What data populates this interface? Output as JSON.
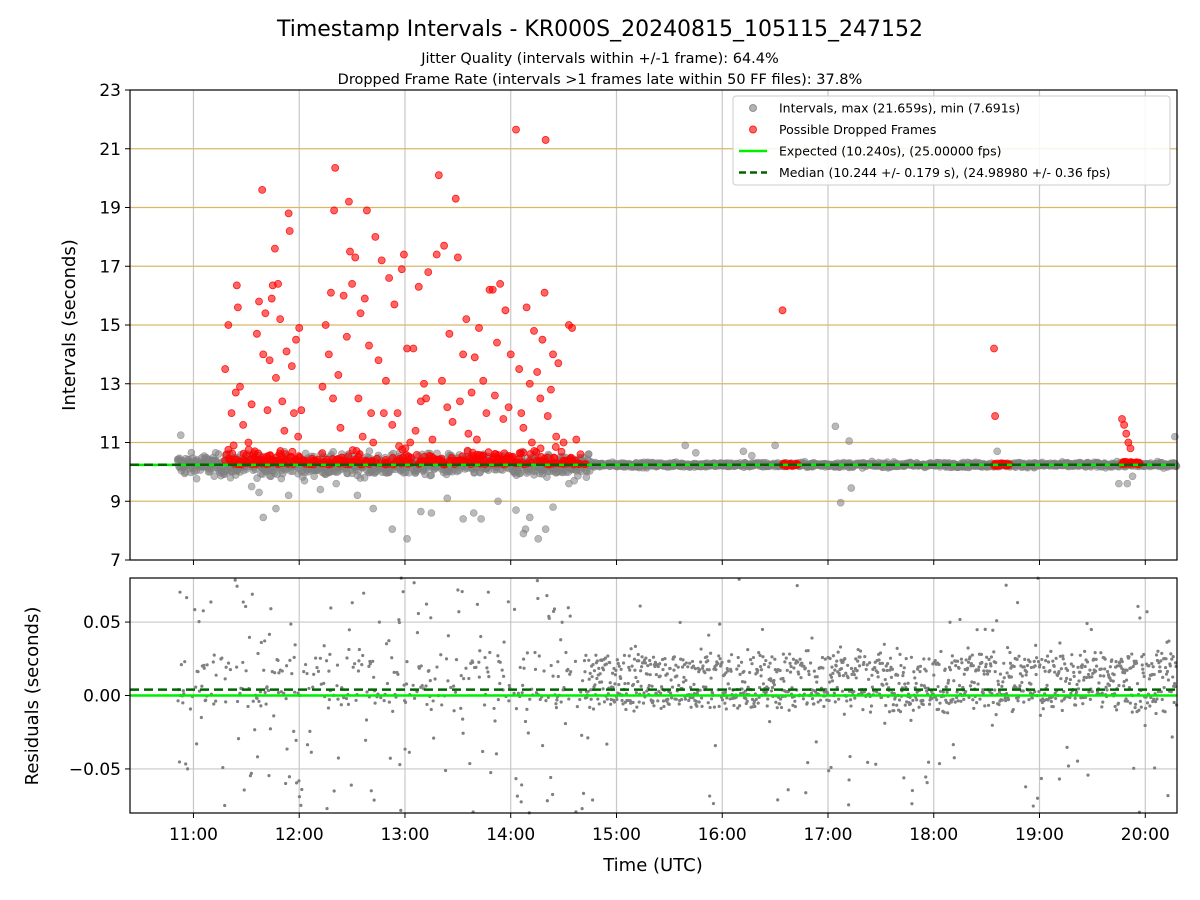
{
  "figure": {
    "title": "Timestamp Intervals - KR000S_20240815_105115_247152",
    "subtitle1": "Jitter Quality (intervals within +/-1 frame): 64.4%",
    "subtitle2": "Dropped Frame Rate (intervals >1 frames late within 50 FF files): 37.8%"
  },
  "chart_data": [
    {
      "type": "scatter",
      "ylabel": "Intervals (seconds)",
      "ylim": [
        7,
        23
      ],
      "yticks": [
        7,
        9,
        11,
        13,
        15,
        17,
        19,
        21,
        23
      ],
      "ytick_labels": [
        "7",
        "9",
        "11",
        "13",
        "15",
        "17",
        "19",
        "21",
        "23"
      ],
      "xlim_hours": [
        10.4,
        20.3
      ],
      "grid": true,
      "dropped_frame_gridlines": [
        9,
        11,
        13,
        15,
        17,
        19,
        21
      ],
      "legend_position": "top-right",
      "legend": [
        {
          "label": "Intervals, max (21.659s), min (7.691s)",
          "kind": "marker",
          "color": "#808080"
        },
        {
          "label": "Possible Dropped Frames",
          "kind": "marker",
          "color": "#ff0000"
        },
        {
          "label": "Expected (10.240s), (25.00000 fps)",
          "kind": "line",
          "color": "#00ee00"
        },
        {
          "label": "Median (10.244 +/- 0.179 s), (24.98980 +/- 0.36 fps)",
          "kind": "dashed",
          "color": "#006400"
        }
      ],
      "expected_interval": 10.24,
      "median_interval": 10.244,
      "max_interval": 21.659,
      "min_interval": 7.691,
      "series_dropped": {
        "color": "#ff0000",
        "points": [
          [
            11.3,
            13.5
          ],
          [
            11.33,
            15.0
          ],
          [
            11.36,
            12.0
          ],
          [
            11.38,
            10.9
          ],
          [
            11.4,
            12.7
          ],
          [
            11.41,
            16.35
          ],
          [
            11.42,
            15.6
          ],
          [
            11.44,
            12.9
          ],
          [
            11.47,
            11.6
          ],
          [
            11.52,
            11.0
          ],
          [
            11.55,
            12.3
          ],
          [
            11.58,
            10.7
          ],
          [
            11.6,
            14.7
          ],
          [
            11.62,
            15.8
          ],
          [
            11.65,
            19.6
          ],
          [
            11.66,
            14.0
          ],
          [
            11.68,
            15.4
          ],
          [
            11.7,
            12.1
          ],
          [
            11.72,
            13.8
          ],
          [
            11.74,
            15.9
          ],
          [
            11.75,
            16.35
          ],
          [
            11.77,
            17.6
          ],
          [
            11.78,
            13.2
          ],
          [
            11.8,
            16.4
          ],
          [
            11.82,
            15.2
          ],
          [
            11.84,
            12.4
          ],
          [
            11.86,
            11.4
          ],
          [
            11.88,
            14.1
          ],
          [
            11.9,
            18.8
          ],
          [
            11.91,
            18.2
          ],
          [
            11.93,
            13.6
          ],
          [
            11.95,
            12.0
          ],
          [
            11.97,
            14.5
          ],
          [
            11.99,
            11.2
          ],
          [
            12.0,
            14.9
          ],
          [
            12.02,
            12.1
          ],
          [
            12.22,
            12.9
          ],
          [
            12.25,
            15.0
          ],
          [
            12.28,
            14.0
          ],
          [
            12.3,
            16.1
          ],
          [
            12.32,
            12.5
          ],
          [
            12.33,
            18.9
          ],
          [
            12.34,
            20.35
          ],
          [
            12.37,
            13.3
          ],
          [
            12.39,
            11.5
          ],
          [
            12.42,
            16.0
          ],
          [
            12.45,
            14.6
          ],
          [
            12.47,
            19.2
          ],
          [
            12.48,
            17.5
          ],
          [
            12.5,
            16.4
          ],
          [
            12.53,
            17.3
          ],
          [
            12.56,
            12.5
          ],
          [
            12.58,
            15.4
          ],
          [
            12.6,
            11.2
          ],
          [
            12.62,
            15.9
          ],
          [
            12.64,
            18.9
          ],
          [
            12.66,
            14.3
          ],
          [
            12.68,
            12.0
          ],
          [
            12.7,
            11.0
          ],
          [
            12.72,
            18.0
          ],
          [
            12.75,
            13.8
          ],
          [
            12.78,
            17.2
          ],
          [
            12.8,
            12.0
          ],
          [
            12.82,
            13.1
          ],
          [
            12.85,
            16.6
          ],
          [
            12.88,
            11.6
          ],
          [
            12.9,
            15.7
          ],
          [
            12.93,
            12.0
          ],
          [
            12.97,
            16.9
          ],
          [
            12.99,
            17.4
          ],
          [
            13.02,
            14.2
          ],
          [
            13.05,
            11.0
          ],
          [
            13.08,
            14.2
          ],
          [
            13.1,
            11.4
          ],
          [
            13.13,
            16.3
          ],
          [
            13.15,
            12.4
          ],
          [
            13.18,
            13.0
          ],
          [
            13.2,
            12.5
          ],
          [
            13.22,
            16.8
          ],
          [
            13.26,
            11.1
          ],
          [
            13.3,
            17.4
          ],
          [
            13.32,
            20.1
          ],
          [
            13.35,
            13.1
          ],
          [
            13.37,
            17.7
          ],
          [
            13.4,
            12.2
          ],
          [
            13.42,
            14.7
          ],
          [
            13.45,
            11.7
          ],
          [
            13.48,
            19.3
          ],
          [
            13.5,
            17.3
          ],
          [
            13.52,
            12.4
          ],
          [
            13.55,
            14.0
          ],
          [
            13.58,
            15.2
          ],
          [
            13.6,
            11.3
          ],
          [
            13.63,
            12.7
          ],
          [
            13.66,
            13.9
          ],
          [
            13.68,
            11.1
          ],
          [
            13.7,
            14.9
          ],
          [
            13.74,
            13.1
          ],
          [
            13.77,
            12.0
          ],
          [
            13.8,
            16.2
          ],
          [
            13.83,
            16.2
          ],
          [
            13.85,
            12.6
          ],
          [
            13.87,
            14.4
          ],
          [
            13.9,
            16.4
          ],
          [
            13.93,
            11.8
          ],
          [
            13.95,
            15.5
          ],
          [
            13.98,
            12.2
          ],
          [
            14.0,
            14.0
          ],
          [
            14.05,
            21.65
          ],
          [
            14.08,
            13.5
          ],
          [
            14.1,
            12.0
          ],
          [
            14.12,
            11.5
          ],
          [
            14.15,
            15.6
          ],
          [
            14.18,
            13.0
          ],
          [
            14.2,
            11.0
          ],
          [
            14.22,
            14.8
          ],
          [
            14.25,
            13.4
          ],
          [
            14.28,
            12.5
          ],
          [
            14.3,
            14.5
          ],
          [
            14.32,
            16.1
          ],
          [
            14.33,
            21.3
          ],
          [
            14.35,
            11.9
          ],
          [
            14.38,
            12.8
          ],
          [
            14.4,
            14.0
          ],
          [
            14.43,
            11.2
          ],
          [
            14.45,
            13.7
          ],
          [
            14.5,
            11.0
          ],
          [
            14.55,
            15.0
          ],
          [
            14.58,
            14.9
          ],
          [
            14.62,
            11.1
          ],
          [
            14.66,
            10.6
          ],
          [
            16.57,
            15.5
          ],
          [
            18.57,
            14.2
          ],
          [
            18.58,
            11.9
          ],
          [
            19.78,
            11.8
          ],
          [
            19.8,
            11.6
          ],
          [
            19.82,
            11.3
          ],
          [
            19.84,
            11.0
          ],
          [
            19.86,
            10.8
          ]
        ],
        "baseline": {
          "x_start": 11.3,
          "x_end": 14.72,
          "y": 10.3,
          "jitter": 0.25
        },
        "baseline_clusters": [
          {
            "x_start": 16.57,
            "x_end": 16.72,
            "y": 10.25
          },
          {
            "x_start": 18.57,
            "x_end": 18.72,
            "y": 10.25
          },
          {
            "x_start": 19.78,
            "x_end": 19.95,
            "y": 10.3
          }
        ]
      },
      "series_intervals": {
        "color": "#808080",
        "x_start": 10.85,
        "x_end": 20.3,
        "center": 10.24,
        "noisy_range": [
          10.85,
          14.75
        ],
        "outliers": [
          [
            10.88,
            11.25
          ],
          [
            11.35,
            9.8
          ],
          [
            11.55,
            9.5
          ],
          [
            11.62,
            9.3
          ],
          [
            11.66,
            8.45
          ],
          [
            11.78,
            8.75
          ],
          [
            11.9,
            9.2
          ],
          [
            12.05,
            9.7
          ],
          [
            12.2,
            9.4
          ],
          [
            12.35,
            9.6
          ],
          [
            12.55,
            9.2
          ],
          [
            12.7,
            8.75
          ],
          [
            12.88,
            8.05
          ],
          [
            13.02,
            7.72
          ],
          [
            13.15,
            8.65
          ],
          [
            13.25,
            8.6
          ],
          [
            13.4,
            9.1
          ],
          [
            13.55,
            8.4
          ],
          [
            13.65,
            8.6
          ],
          [
            13.72,
            8.4
          ],
          [
            13.88,
            9.0
          ],
          [
            14.05,
            8.7
          ],
          [
            14.12,
            7.9
          ],
          [
            14.14,
            8.05
          ],
          [
            14.18,
            8.45
          ],
          [
            14.26,
            7.72
          ],
          [
            14.33,
            8.05
          ],
          [
            14.4,
            8.8
          ],
          [
            14.55,
            9.6
          ],
          [
            14.6,
            9.7
          ],
          [
            15.65,
            10.9
          ],
          [
            15.75,
            10.65
          ],
          [
            16.2,
            10.7
          ],
          [
            16.28,
            10.55
          ],
          [
            16.5,
            10.9
          ],
          [
            17.07,
            11.55
          ],
          [
            17.2,
            11.05
          ],
          [
            17.12,
            8.95
          ],
          [
            17.22,
            9.45
          ],
          [
            18.6,
            10.7
          ],
          [
            19.75,
            9.6
          ],
          [
            19.83,
            9.6
          ],
          [
            19.88,
            9.85
          ],
          [
            20.28,
            11.2
          ]
        ]
      }
    },
    {
      "type": "scatter",
      "ylabel": "Residuals (seconds)",
      "xlabel": "Time (UTC)",
      "ylim": [
        -0.08,
        0.08
      ],
      "yticks": [
        -0.05,
        0.0,
        0.05
      ],
      "ytick_labels": [
        "−0.05",
        "0.00",
        "0.05"
      ],
      "xlim_hours": [
        10.4,
        20.3
      ],
      "xticks_hours": [
        11,
        12,
        13,
        14,
        15,
        16,
        17,
        18,
        19,
        20
      ],
      "xtick_labels": [
        "11:00",
        "12:00",
        "13:00",
        "14:00",
        "15:00",
        "16:00",
        "17:00",
        "18:00",
        "19:00",
        "20:00"
      ],
      "grid": true,
      "expected_residual": 0.0,
      "median_residual": 0.004,
      "series": {
        "color": "#808080",
        "x_start": 10.85,
        "x_end": 20.3,
        "bands": [
          0.0,
          0.02
        ],
        "sparse_range": [
          10.85,
          14.7
        ]
      }
    }
  ]
}
